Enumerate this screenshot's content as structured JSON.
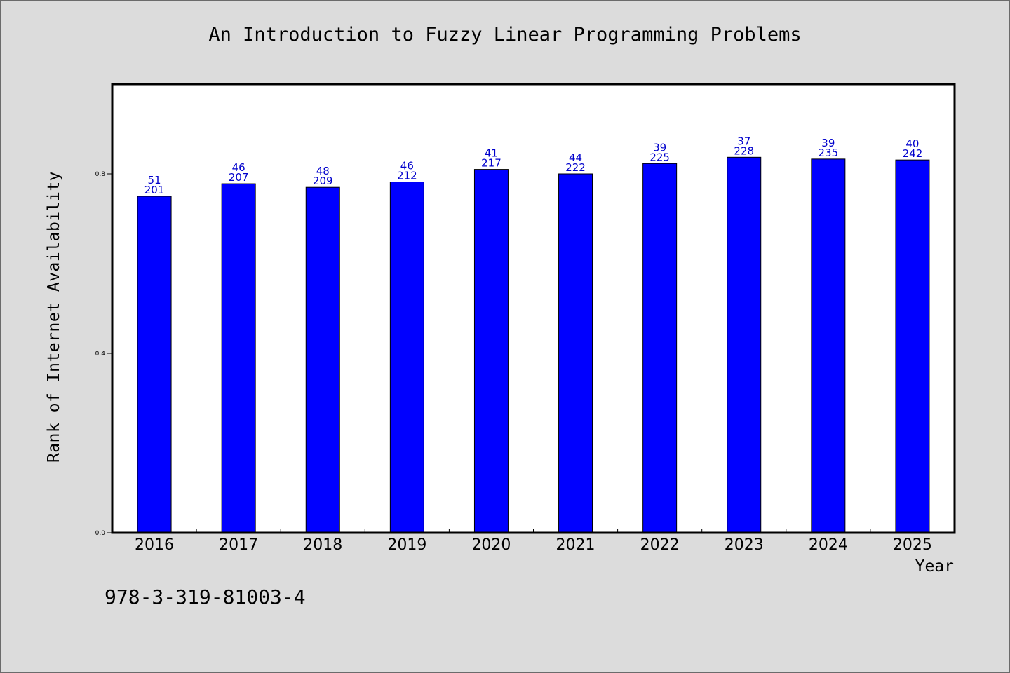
{
  "page": {
    "title": "An Introduction to Fuzzy Linear Programming Problems",
    "isbn": "978-3-319-81003-4",
    "background": "#dcdcdc"
  },
  "chart_data": {
    "type": "bar",
    "title": "An Introduction to Fuzzy Linear Programming Problems",
    "xlabel": "Year",
    "ylabel": "Rank of Internet Availability",
    "categories": [
      "2016",
      "2017",
      "2018",
      "2019",
      "2020",
      "2021",
      "2022",
      "2023",
      "2024",
      "2025"
    ],
    "values": [
      0.75,
      0.778,
      0.77,
      0.782,
      0.81,
      0.8,
      0.823,
      0.837,
      0.833,
      0.831
    ],
    "label_top": [
      "51",
      "46",
      "48",
      "46",
      "41",
      "44",
      "39",
      "37",
      "39",
      "40"
    ],
    "label_bottom": [
      "201",
      "207",
      "209",
      "212",
      "217",
      "222",
      "225",
      "228",
      "235",
      "242"
    ],
    "ylim": [
      0,
      1.0
    ],
    "yticks": [
      0.0,
      0.4,
      0.8
    ],
    "ytick_labels": [
      "0.0",
      "0.4",
      "0.8"
    ],
    "grid": false,
    "colors": {
      "bar": "#0000ff",
      "bar_edge": "#000000",
      "label": "#0000cc"
    }
  }
}
